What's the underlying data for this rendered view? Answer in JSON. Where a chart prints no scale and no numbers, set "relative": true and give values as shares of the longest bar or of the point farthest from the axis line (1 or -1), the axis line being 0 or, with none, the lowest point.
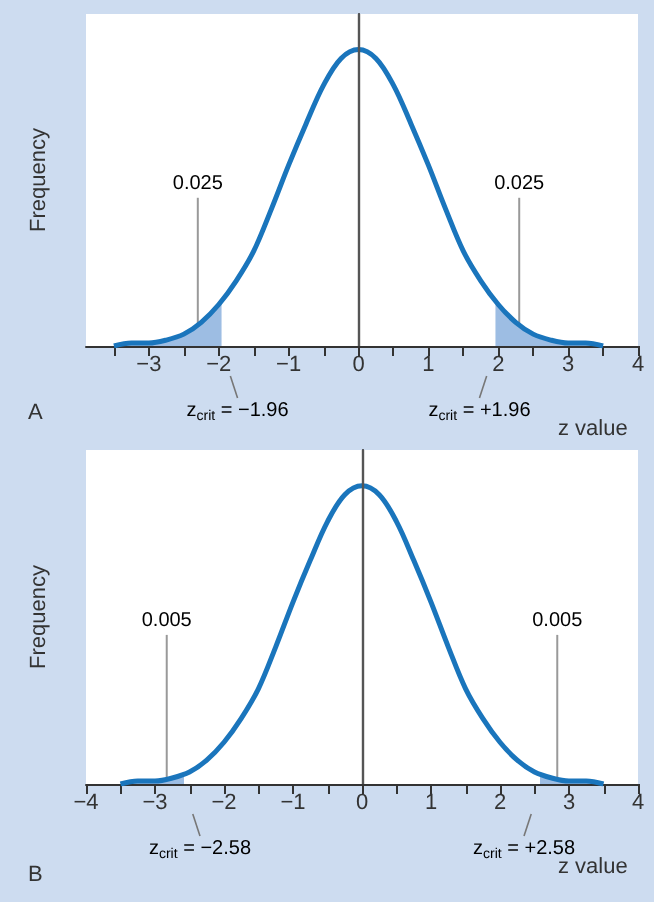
{
  "chart_data": [
    {
      "type": "line",
      "relative": true,
      "xlabel": "z value",
      "ylabel": "Frequency",
      "xlim": [
        -3.9,
        4
      ],
      "xticks": [
        {
          "value": -3.5,
          "label": null
        },
        -3,
        {
          "value": -2.5,
          "label": null
        },
        -2,
        {
          "value": -1.5,
          "label": null
        },
        -1,
        {
          "value": -0.5,
          "label": null
        },
        0,
        {
          "value": 0.5,
          "label": null
        },
        1,
        {
          "value": 1.5,
          "label": null
        },
        2,
        {
          "value": 2.5,
          "label": null
        },
        3,
        {
          "value": 3.5,
          "label": null
        },
        4
      ],
      "series": [
        {
          "type": "area",
          "color": "#9dbde3",
          "x": [
            -3.5,
            -3.25,
            -3,
            -2.75,
            -2.5,
            -2.25,
            -2,
            -1.96
          ],
          "values": [
            0,
            0.01,
            0.01,
            0.02,
            0.04,
            0.08,
            0.14,
            0.15
          ]
        },
        {
          "type": "area",
          "color": "#9dbde3",
          "x": [
            1.96,
            2,
            2.25,
            2.5,
            2.75,
            3,
            3.25,
            3.5
          ],
          "values": [
            0.15,
            0.14,
            0.08,
            0.04,
            0.02,
            0.01,
            0.01,
            0
          ]
        },
        {
          "type": "line",
          "color": "#1a75bc",
          "x": [
            -3.5,
            -3.25,
            -3,
            -2.75,
            -2.5,
            -2.25,
            -2,
            -1.75,
            -1.5,
            -1.25,
            -1,
            -0.75,
            -0.5,
            -0.25,
            0,
            0.25,
            0.5,
            0.75,
            1,
            1.25,
            1.5,
            1.75,
            2,
            2.25,
            2.5,
            2.75,
            3,
            3.25,
            3.5
          ],
          "values": [
            0,
            0.01,
            0.01,
            0.02,
            0.04,
            0.08,
            0.14,
            0.22,
            0.32,
            0.46,
            0.61,
            0.75,
            0.88,
            0.97,
            1,
            0.97,
            0.88,
            0.75,
            0.61,
            0.46,
            0.32,
            0.22,
            0.14,
            0.08,
            0.04,
            0.02,
            0.01,
            0.01,
            0
          ]
        }
      ],
      "ref_lines": [
        {
          "axis": "x",
          "value": 0,
          "color": "#555555"
        }
      ],
      "annotations": [
        {
          "text": "0.025",
          "x": -2.3,
          "y": 0.07
        },
        {
          "text": "0.025",
          "x": 2.3,
          "y": 0.07
        },
        {
          "text": "z$_{crit}$ = −1.96",
          "x": -1.96,
          "y": 0
        },
        {
          "text": "z$_{crit}$ = +1.96",
          "x": 1.96,
          "y": 0
        },
        "A"
      ],
      "grid": false,
      "marker": "none"
    },
    {
      "type": "line",
      "relative": true,
      "xlabel": "z value",
      "ylabel": "Frequency",
      "xlim": [
        -4,
        4
      ],
      "xticks": [
        -4,
        {
          "value": -3.5,
          "label": null
        },
        -3,
        {
          "value": -2.5,
          "label": null
        },
        -2,
        {
          "value": -1.5,
          "label": null
        },
        -1,
        {
          "value": -0.5,
          "label": null
        },
        0,
        {
          "value": 0.5,
          "label": null
        },
        1,
        {
          "value": 1.5,
          "label": null
        },
        2,
        {
          "value": 2.5,
          "label": null
        },
        3,
        {
          "value": 3.5,
          "label": null
        },
        4
      ],
      "series": [
        {
          "type": "area",
          "color": "#9dbde3",
          "x": [
            -3.5,
            -3.25,
            -3,
            -2.75,
            -2.58
          ],
          "values": [
            0,
            0.01,
            0.01,
            0.02,
            0.04
          ]
        },
        {
          "type": "area",
          "color": "#9dbde3",
          "x": [
            2.58,
            2.75,
            3,
            3.25,
            3.5
          ],
          "values": [
            0.04,
            0.02,
            0.01,
            0.01,
            0
          ]
        },
        {
          "type": "line",
          "color": "#1a75bc",
          "x": [
            -3.5,
            -3.25,
            -3,
            -2.75,
            -2.5,
            -2.25,
            -2,
            -1.75,
            -1.5,
            -1.25,
            -1,
            -0.75,
            -0.5,
            -0.25,
            0,
            0.25,
            0.5,
            0.75,
            1,
            1.25,
            1.5,
            1.75,
            2,
            2.25,
            2.5,
            2.75,
            3,
            3.25,
            3.5
          ],
          "values": [
            0,
            0.01,
            0.01,
            0.02,
            0.04,
            0.08,
            0.14,
            0.22,
            0.32,
            0.46,
            0.61,
            0.75,
            0.88,
            0.97,
            1,
            0.97,
            0.88,
            0.75,
            0.61,
            0.46,
            0.32,
            0.22,
            0.14,
            0.08,
            0.04,
            0.02,
            0.01,
            0.01,
            0
          ]
        }
      ],
      "ref_lines": [
        {
          "axis": "x",
          "value": 0,
          "color": "#555555"
        }
      ],
      "annotations": [
        {
          "text": "0.005",
          "x": -2.83,
          "y": 0.015
        },
        {
          "text": "0.005",
          "x": 2.83,
          "y": 0.015
        },
        {
          "text": "z$_{crit}$ = −2.58",
          "x": -2.58,
          "y": 0
        },
        {
          "text": "z$_{crit}$ = +2.58",
          "x": 2.58,
          "y": 0
        },
        "B"
      ],
      "grid": false,
      "marker": "none"
    }
  ]
}
